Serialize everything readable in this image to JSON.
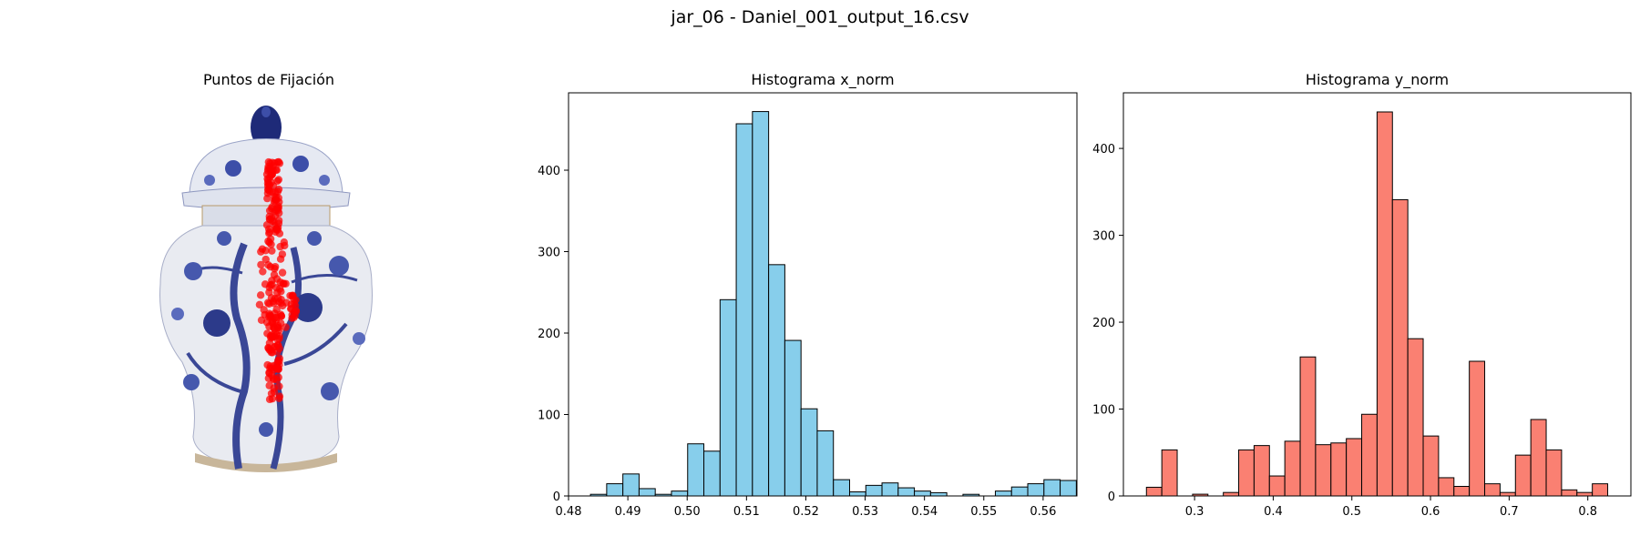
{
  "figure": {
    "suptitle": "jar_06 - Daniel_001_output_16.csv"
  },
  "image_panel": {
    "title": "Puntos de Fijación",
    "image": "blue-and-white porcelain ginger jar with lid, floral/tree pattern",
    "overlay": "red fixation point markers in a narrow vertical band",
    "marker_color": "#ff0000"
  },
  "chart_data": [
    {
      "type": "bar",
      "title": "Histograma x_norm",
      "xlabel": "",
      "ylabel": "",
      "bar_color": "#87ceeb",
      "edge_color": "#000000",
      "bin_start": 0.4837,
      "bin_width": 0.00273,
      "values": [
        2,
        15,
        27,
        9,
        2,
        6,
        64,
        55,
        241,
        457,
        472,
        284,
        191,
        107,
        80,
        20,
        5,
        13,
        16,
        10,
        6,
        4,
        0,
        2,
        0,
        6,
        11,
        15,
        20,
        19
      ],
      "xlim": [
        0.48,
        0.5657
      ],
      "ylim": [
        0,
        495
      ],
      "xticks": [
        0.48,
        0.49,
        0.5,
        0.51,
        0.52,
        0.53,
        0.54,
        0.55,
        0.56
      ],
      "xtick_labels": [
        "0.48",
        "0.49",
        "0.50",
        "0.51",
        "0.52",
        "0.53",
        "0.54",
        "0.55",
        "0.56"
      ],
      "yticks": [
        0,
        100,
        200,
        300,
        400
      ],
      "ytick_labels": [
        "0",
        "100",
        "200",
        "300",
        "400"
      ],
      "grid": false
    },
    {
      "type": "bar",
      "title": "Histograma y_norm",
      "xlabel": "",
      "ylabel": "",
      "bar_color": "#fa8072",
      "edge_color": "#000000",
      "bin_start": 0.2388,
      "bin_width": 0.01955,
      "values": [
        10,
        53,
        0,
        2,
        0,
        4,
        53,
        58,
        23,
        63,
        160,
        59,
        61,
        66,
        94,
        442,
        341,
        181,
        69,
        21,
        11,
        155,
        14,
        4,
        47,
        88,
        53,
        7,
        4,
        14
      ],
      "xlim": [
        0.2095,
        0.8548
      ],
      "ylim": [
        0,
        464
      ],
      "xticks": [
        0.3,
        0.4,
        0.5,
        0.6,
        0.7,
        0.8
      ],
      "xtick_labels": [
        "0.3",
        "0.4",
        "0.5",
        "0.6",
        "0.7",
        "0.8"
      ],
      "yticks": [
        0,
        100,
        200,
        300,
        400
      ],
      "ytick_labels": [
        "0",
        "100",
        "200",
        "300",
        "400"
      ],
      "grid": false
    }
  ]
}
